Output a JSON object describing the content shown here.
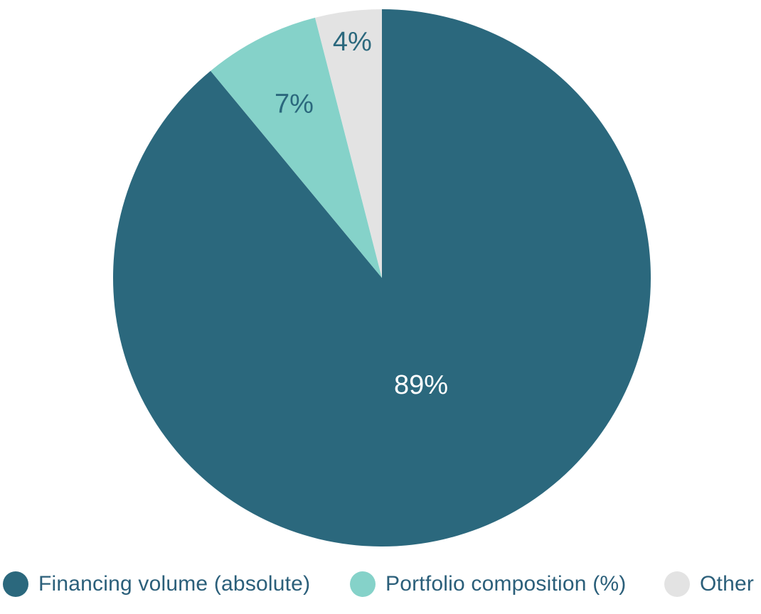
{
  "chart_data": {
    "type": "pie",
    "title": "",
    "slices": [
      {
        "name": "Financing volume (absolute)",
        "value": 89,
        "label": "89%",
        "color": "#2b687d",
        "label_color": "#ffffff"
      },
      {
        "name": "Portfolio composition (%)",
        "value": 7,
        "label": "7%",
        "color": "#85d2c9",
        "label_color": "#2b687d"
      },
      {
        "name": "Other",
        "value": 4,
        "label": "4%",
        "color": "#e3e3e3",
        "label_color": "#2b687d"
      }
    ],
    "start_angle_deg": 0,
    "direction": "counterclockwise",
    "legend_position": "bottom"
  }
}
